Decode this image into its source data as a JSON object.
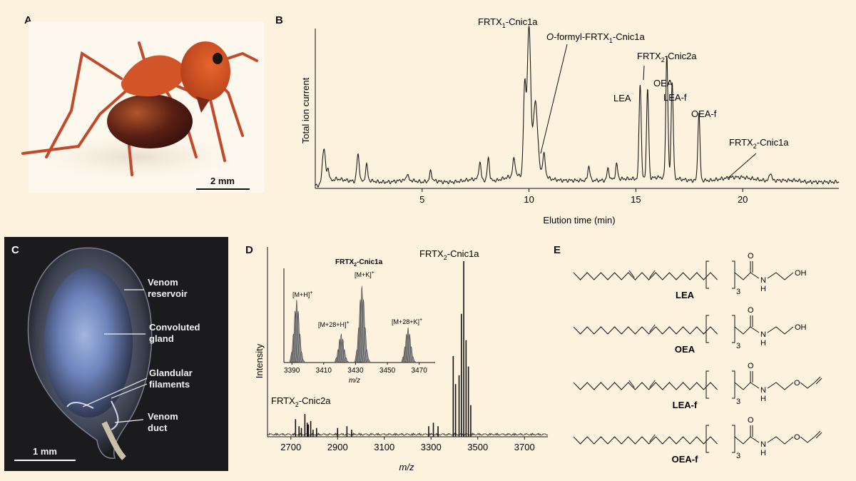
{
  "panels": {
    "a": {
      "letter": "A",
      "scale_label": "2 mm"
    },
    "b": {
      "letter": "B",
      "chart_data": {
        "type": "line",
        "xlabel": "Elution time (min)",
        "ylabel": "Total ion current",
        "xlim": [
          0,
          24.5
        ],
        "ylim": [
          0,
          1
        ],
        "xticks": [
          5,
          10,
          15,
          20
        ],
        "baseline_x": [
          0.2,
          0.5,
          1.0,
          1.5,
          2.0,
          2.5,
          3.0,
          3.5,
          4.0,
          4.5,
          5.0,
          5.5,
          6.0,
          6.5,
          7.0,
          7.5,
          8.0,
          8.5,
          9.0,
          9.5,
          10.5,
          11.0,
          11.5,
          12.0,
          12.5,
          13.0,
          13.5,
          14.0,
          14.5,
          15.5,
          16.0,
          17.0,
          17.5,
          18.5,
          19.0,
          19.5,
          20.0,
          20.5,
          21.0,
          21.5,
          22.0,
          22.5,
          23.0,
          23.5,
          24.0,
          24.5
        ],
        "baseline_y": [
          0.02,
          0.04,
          0.06,
          0.05,
          0.04,
          0.05,
          0.04,
          0.04,
          0.05,
          0.05,
          0.04,
          0.05,
          0.04,
          0.04,
          0.05,
          0.06,
          0.05,
          0.05,
          0.07,
          0.08,
          0.1,
          0.06,
          0.05,
          0.05,
          0.05,
          0.05,
          0.05,
          0.06,
          0.06,
          0.06,
          0.07,
          0.06,
          0.05,
          0.05,
          0.06,
          0.07,
          0.07,
          0.06,
          0.05,
          0.05,
          0.05,
          0.05,
          0.04,
          0.04,
          0.04,
          0.04
        ],
        "peaks": [
          {
            "x": 0.4,
            "height": 0.22,
            "width": 0.07
          },
          {
            "x": 0.6,
            "height": 0.08,
            "width": 0.05
          },
          {
            "x": 2.0,
            "height": 0.17,
            "width": 0.06
          },
          {
            "x": 2.4,
            "height": 0.1,
            "width": 0.05
          },
          {
            "x": 4.3,
            "height": 0.04,
            "width": 0.05
          },
          {
            "x": 5.4,
            "height": 0.06,
            "width": 0.05
          },
          {
            "x": 7.7,
            "height": 0.11,
            "width": 0.05
          },
          {
            "x": 8.1,
            "height": 0.14,
            "width": 0.05
          },
          {
            "x": 9.3,
            "height": 0.11,
            "width": 0.06
          },
          {
            "x": 9.8,
            "height": 0.55,
            "width": 0.06
          },
          {
            "x": 10.0,
            "height": 0.92,
            "width": 0.08
          },
          {
            "x": 10.3,
            "height": 0.45,
            "width": 0.1
          },
          {
            "x": 10.7,
            "height": 0.13,
            "width": 0.06
          },
          {
            "x": 12.8,
            "height": 0.09,
            "width": 0.05
          },
          {
            "x": 13.7,
            "height": 0.07,
            "width": 0.05
          },
          {
            "x": 14.1,
            "height": 0.09,
            "width": 0.05
          },
          {
            "x": 15.2,
            "height": 0.6,
            "width": 0.05
          },
          {
            "x": 15.55,
            "height": 0.56,
            "width": 0.05
          },
          {
            "x": 16.45,
            "height": 0.77,
            "width": 0.05
          },
          {
            "x": 16.7,
            "height": 0.6,
            "width": 0.05
          },
          {
            "x": 17.95,
            "height": 0.42,
            "width": 0.05
          },
          {
            "x": 21.3,
            "height": 0.05,
            "width": 0.05
          }
        ],
        "annotations": [
          {
            "label_main": "FRTX",
            "sub": "1",
            "label_end": "-Cnic1a",
            "italic_prefix": ""
          },
          {
            "label_main": "-formyl-FRTX",
            "sub": "1",
            "label_end": "-Cnic1a",
            "italic_prefix": "O"
          },
          {
            "label_main": "FRTX",
            "sub": "2",
            "label_end": "-Cnic2a",
            "italic_prefix": ""
          },
          {
            "label_main": "LEA",
            "sub": "",
            "label_end": "",
            "italic_prefix": ""
          },
          {
            "label_main": "OEA",
            "sub": "",
            "label_end": "",
            "italic_prefix": ""
          },
          {
            "label_main": "LEA-f",
            "sub": "",
            "label_end": "",
            "italic_prefix": ""
          },
          {
            "label_main": "OEA-f",
            "sub": "",
            "label_end": "",
            "italic_prefix": ""
          },
          {
            "label_main": "FRTX",
            "sub": "2",
            "label_end": "-Cnic1a",
            "italic_prefix": ""
          }
        ]
      }
    },
    "c": {
      "letter": "C",
      "labels": {
        "reservoir_1": "Venom",
        "reservoir_2": "reservoir",
        "gland_1": "Convoluted",
        "gland_2": "gland",
        "filaments_1": "Glandular",
        "filaments_2": "filaments",
        "duct_1": "Venom",
        "duct_2": "duct"
      },
      "scale_label": "1 mm"
    },
    "d": {
      "letter": "D",
      "chart_data": {
        "type": "bar",
        "xlabel": "m/z",
        "ylabel": "Intensity",
        "xlim": [
          2600,
          3800
        ],
        "ylim": [
          0,
          1
        ],
        "xticks": [
          2700,
          2900,
          3100,
          3300,
          3500,
          3700
        ],
        "sticks_x": [
          2720,
          2735,
          2745,
          2760,
          2770,
          2775,
          2785,
          2795,
          2810,
          2900,
          2940,
          2960,
          3290,
          3310,
          3330,
          3395,
          3405,
          3420,
          3430,
          3440,
          3450,
          3460,
          3470
        ],
        "sticks_y": [
          0.1,
          0.06,
          0.05,
          0.13,
          0.08,
          0.07,
          0.09,
          0.04,
          0.05,
          0.05,
          0.06,
          0.04,
          0.06,
          0.08,
          0.06,
          0.46,
          0.3,
          0.35,
          0.7,
          1.0,
          0.55,
          0.4,
          0.18
        ],
        "annotations": [
          {
            "label_main": "FRTX",
            "sub": "2",
            "label_end": "-Cnic1a"
          },
          {
            "label_main": "FRTX",
            "sub": "2",
            "label_end": "-Cnic2a"
          }
        ],
        "inset": {
          "title_main": "FRTX",
          "title_sub": "2",
          "title_end": "-Cnic1a",
          "xlabel": "m/z",
          "xlim": [
            3385,
            3480
          ],
          "ylim": [
            0,
            1
          ],
          "xticks": [
            3390,
            3410,
            3430,
            3450,
            3470
          ],
          "peaks": [
            {
              "x": 3392,
              "height": 0.72,
              "width": 1.4
            },
            {
              "x": 3420,
              "height": 0.33,
              "width": 1.2
            },
            {
              "x": 3433,
              "height": 0.88,
              "width": 1.5
            },
            {
              "x": 3462,
              "height": 0.4,
              "width": 1.3
            }
          ],
          "labels": [
            {
              "text": "[M+H]",
              "sup": "+"
            },
            {
              "text": "[M+28+H]",
              "sup": "+"
            },
            {
              "text": "[M+K]",
              "sup": "+"
            },
            {
              "text": "[M+28+K]",
              "sup": "+"
            }
          ]
        }
      }
    },
    "e": {
      "letter": "E",
      "molecules": [
        {
          "name": "LEA",
          "terminal": "OH",
          "repeat": "3",
          "n_label": "N",
          "h_label": "H",
          "o_label": "O"
        },
        {
          "name": "OEA",
          "terminal": "OH",
          "repeat": "3",
          "n_label": "N",
          "h_label": "H",
          "o_label": "O"
        },
        {
          "name": "LEA-f",
          "terminal": "O",
          "repeat": "3",
          "n_label": "N",
          "h_label": "H",
          "o_label": "O"
        },
        {
          "name": "OEA-f",
          "terminal": "O",
          "repeat": "3",
          "n_label": "N",
          "h_label": "H",
          "o_label": "O"
        }
      ]
    }
  }
}
